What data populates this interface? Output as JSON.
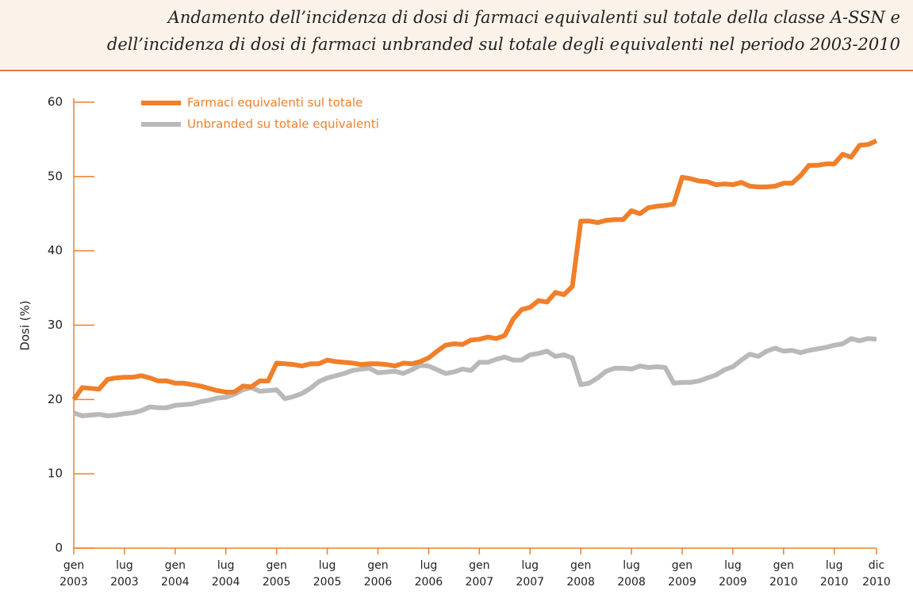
{
  "chart_data": {
    "type": "line",
    "title": [
      "Andamento dell’incidenza di dosi di farmaci equivalenti sul totale della classe A-SSN e",
      "dell’incidenza di dosi di farmaci unbranded sul totale degli equivalenti nel periodo 2003-2010"
    ],
    "ylabel": "Dosi (%)",
    "categories": [
      "gen 2003",
      null,
      null,
      null,
      null,
      null,
      "lug 2003",
      null,
      null,
      null,
      null,
      null,
      "gen 2004",
      null,
      null,
      null,
      null,
      null,
      "lug 2004",
      null,
      null,
      null,
      null,
      null,
      "gen 2005",
      null,
      null,
      null,
      null,
      null,
      "lug 2005",
      null,
      null,
      null,
      null,
      null,
      "gen 2006",
      null,
      null,
      null,
      null,
      null,
      "lug 2006",
      null,
      null,
      null,
      null,
      null,
      "gen 2007",
      null,
      null,
      null,
      null,
      null,
      "lug 2007",
      null,
      null,
      null,
      null,
      null,
      "gen 2008",
      null,
      null,
      null,
      null,
      null,
      "lug 2008",
      null,
      null,
      null,
      null,
      null,
      "gen 2009",
      null,
      null,
      null,
      null,
      null,
      "lug 2009",
      null,
      null,
      null,
      null,
      null,
      "gen 2010",
      null,
      null,
      null,
      null,
      null,
      "lug 2010",
      null,
      null,
      null,
      null,
      "dic 2010"
    ],
    "series": [
      {
        "name": "Farmaci equivalenti sul totale",
        "color": "#f07f2a",
        "values": [
          20,
          21.6,
          21.5,
          21.4,
          22.7,
          22.9,
          23,
          23,
          23.2,
          22.9,
          22.5,
          22.5,
          22.2,
          22.2,
          22,
          21.8,
          21.5,
          21.2,
          21,
          21,
          21.8,
          21.7,
          22.5,
          22.5,
          24.9,
          24.8,
          24.7,
          24.5,
          24.8,
          24.8,
          25.3,
          25.1,
          25,
          24.9,
          24.7,
          24.8,
          24.8,
          24.7,
          24.5,
          24.9,
          24.8,
          25.1,
          25.6,
          26.5,
          27.3,
          27.5,
          27.4,
          28,
          28.1,
          28.4,
          28.2,
          28.6,
          30.8,
          32.1,
          32.4,
          33.3,
          33.1,
          34.4,
          34.1,
          35.2,
          44,
          44,
          43.8,
          44.1,
          44.2,
          44.2,
          45.4,
          45,
          45.8,
          46,
          46.1,
          46.3,
          49.9,
          49.7,
          49.4,
          49.3,
          48.9,
          49,
          48.9,
          49.2,
          48.7,
          48.6,
          48.6,
          48.7,
          49.1,
          49.1,
          50.1,
          51.5,
          51.5,
          51.7,
          51.7,
          53,
          52.6,
          54.2,
          54.3,
          54.8
        ]
      },
      {
        "name": "Unbranded su totale equivalenti",
        "color": "#b9b9b9",
        "values": [
          18.2,
          17.8,
          17.9,
          18,
          17.8,
          17.9,
          18.1,
          18.2,
          18.5,
          19,
          18.9,
          18.9,
          19.2,
          19.3,
          19.4,
          19.7,
          19.9,
          20.2,
          20.3,
          20.7,
          21.3,
          21.6,
          21.1,
          21.2,
          21.3,
          20.1,
          20.4,
          20.8,
          21.5,
          22.4,
          22.9,
          23.2,
          23.5,
          23.9,
          24.1,
          24.2,
          23.6,
          23.7,
          23.8,
          23.5,
          24,
          24.6,
          24.5,
          24,
          23.5,
          23.7,
          24.1,
          23.9,
          25,
          25,
          25.4,
          25.7,
          25.3,
          25.3,
          26,
          26.2,
          26.5,
          25.8,
          26,
          25.6,
          22,
          22.2,
          22.9,
          23.8,
          24.2,
          24.2,
          24.1,
          24.5,
          24.3,
          24.4,
          24.3,
          22.2,
          22.3,
          22.3,
          22.5,
          22.9,
          23.3,
          24,
          24.4,
          25.3,
          26.1,
          25.8,
          26.5,
          26.9,
          26.5,
          26.6,
          26.3,
          26.6,
          26.8,
          27,
          27.3,
          27.5,
          28.2,
          27.9,
          28.2,
          28.1
        ]
      }
    ],
    "ylim": [
      0,
      60
    ],
    "yticks": [
      0,
      10,
      20,
      30,
      40,
      50,
      60
    ],
    "axis_color": "#f07f2a"
  }
}
